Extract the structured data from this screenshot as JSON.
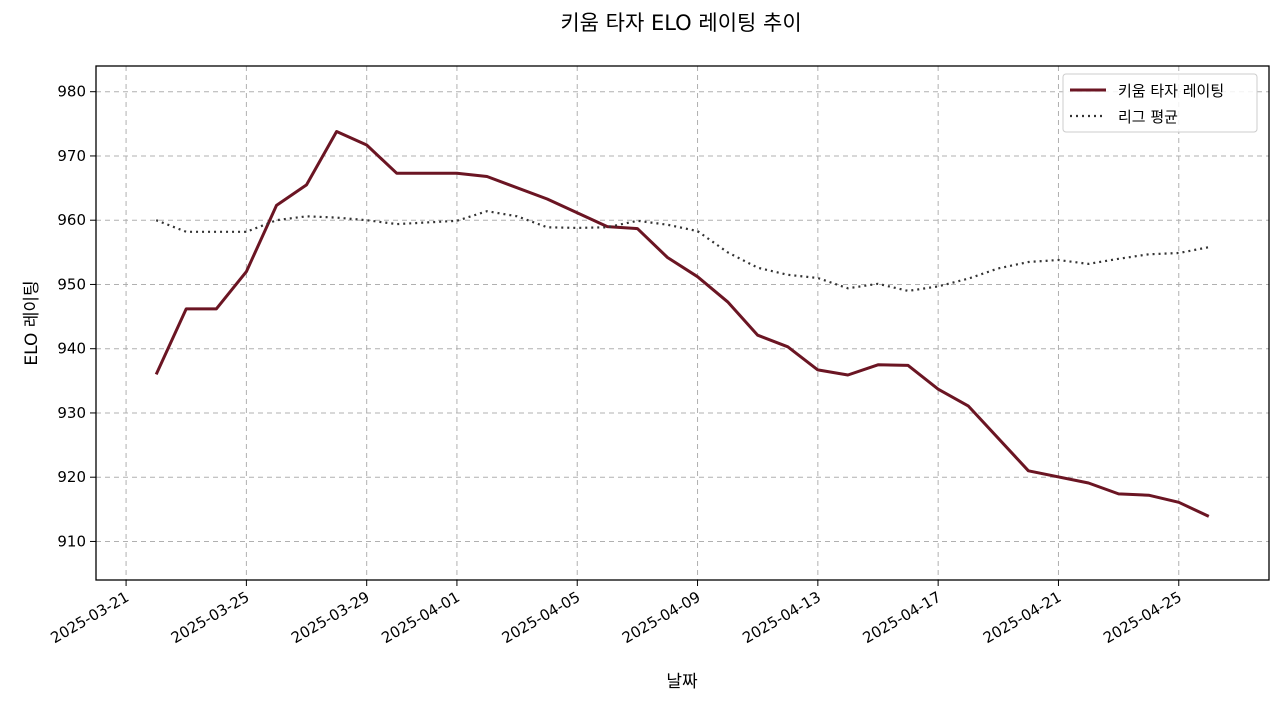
{
  "chart_data": {
    "type": "line",
    "title": "키움 타자 ELO 레이팅 추이",
    "xlabel": "날짜",
    "ylabel": "ELO 레이팅",
    "ylim": [
      904,
      984
    ],
    "xlim": [
      "2025-03-20",
      "2025-04-28"
    ],
    "yticks": [
      910,
      920,
      930,
      940,
      950,
      960,
      970,
      980
    ],
    "xticks": [
      "2025-03-21",
      "2025-03-25",
      "2025-03-29",
      "2025-04-01",
      "2025-04-05",
      "2025-04-09",
      "2025-04-13",
      "2025-04-17",
      "2025-04-21",
      "2025-04-25"
    ],
    "grid": true,
    "legend_position": "top-right",
    "series": [
      {
        "name": "키움 타자 레이팅",
        "style": "solid",
        "color": "#6b1523",
        "points": [
          [
            "2025-03-22",
            936.0
          ],
          [
            "2025-03-23",
            946.2
          ],
          [
            "2025-03-24",
            946.2
          ],
          [
            "2025-03-25",
            952.0
          ],
          [
            "2025-03-26",
            962.3
          ],
          [
            "2025-03-27",
            965.5
          ],
          [
            "2025-03-28",
            973.8
          ],
          [
            "2025-03-29",
            971.7
          ],
          [
            "2025-03-30",
            967.3
          ],
          [
            "2025-04-01",
            967.3
          ],
          [
            "2025-04-02",
            966.8
          ],
          [
            "2025-04-04",
            963.3
          ],
          [
            "2025-04-06",
            959.0
          ],
          [
            "2025-04-07",
            958.7
          ],
          [
            "2025-04-08",
            954.2
          ],
          [
            "2025-04-09",
            951.2
          ],
          [
            "2025-04-10",
            947.3
          ],
          [
            "2025-04-11",
            942.1
          ],
          [
            "2025-04-12",
            940.3
          ],
          [
            "2025-04-13",
            936.7
          ],
          [
            "2025-04-14",
            935.9
          ],
          [
            "2025-04-15",
            937.5
          ],
          [
            "2025-04-16",
            937.4
          ],
          [
            "2025-04-17",
            933.7
          ],
          [
            "2025-04-18",
            931.1
          ],
          [
            "2025-04-20",
            921.0
          ],
          [
            "2025-04-22",
            919.1
          ],
          [
            "2025-04-23",
            917.4
          ],
          [
            "2025-04-24",
            917.2
          ],
          [
            "2025-04-25",
            916.1
          ],
          [
            "2025-04-26",
            913.9
          ]
        ]
      },
      {
        "name": "리그 평균",
        "style": "dotted",
        "color": "#333333",
        "points": [
          [
            "2025-03-22",
            960.0
          ],
          [
            "2025-03-23",
            958.2
          ],
          [
            "2025-03-24",
            958.2
          ],
          [
            "2025-03-25",
            958.2
          ],
          [
            "2025-03-26",
            960.0
          ],
          [
            "2025-03-27",
            960.6
          ],
          [
            "2025-03-28",
            960.4
          ],
          [
            "2025-03-29",
            960.0
          ],
          [
            "2025-03-30",
            959.4
          ],
          [
            "2025-04-01",
            959.9
          ],
          [
            "2025-04-02",
            961.4
          ],
          [
            "2025-04-03",
            960.6
          ],
          [
            "2025-04-04",
            958.9
          ],
          [
            "2025-04-05",
            958.8
          ],
          [
            "2025-04-06",
            958.9
          ],
          [
            "2025-04-07",
            959.9
          ],
          [
            "2025-04-08",
            959.3
          ],
          [
            "2025-04-09",
            958.3
          ],
          [
            "2025-04-10",
            955.0
          ],
          [
            "2025-04-11",
            952.6
          ],
          [
            "2025-04-12",
            951.5
          ],
          [
            "2025-04-13",
            951.0
          ],
          [
            "2025-04-14",
            949.4
          ],
          [
            "2025-04-15",
            950.1
          ],
          [
            "2025-04-16",
            949.0
          ],
          [
            "2025-04-17",
            949.7
          ],
          [
            "2025-04-18",
            950.9
          ],
          [
            "2025-04-19",
            952.5
          ],
          [
            "2025-04-20",
            953.5
          ],
          [
            "2025-04-21",
            953.8
          ],
          [
            "2025-04-22",
            953.2
          ],
          [
            "2025-04-23",
            954.0
          ],
          [
            "2025-04-24",
            954.7
          ],
          [
            "2025-04-25",
            954.9
          ],
          [
            "2025-04-26",
            955.8
          ]
        ]
      }
    ]
  }
}
